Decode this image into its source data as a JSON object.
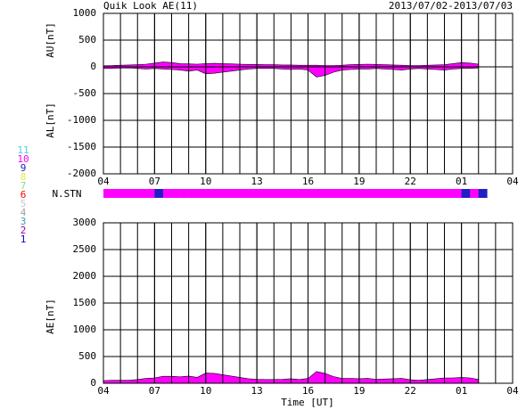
{
  "header": {
    "title": "Quik Look AE(11)",
    "date_range": "2013/07/02-2013/07/03"
  },
  "stations": {
    "label": "N.STN",
    "x": [
      0,
      0.5,
      1,
      1.5,
      2,
      2.5,
      3,
      3.5,
      4,
      4.5,
      5,
      5.5,
      6,
      6.5,
      7,
      7.5,
      8,
      8.5,
      9,
      9.5,
      10,
      10.5,
      11,
      11.5,
      12,
      12.5,
      13,
      13.5,
      14,
      14.5,
      15,
      15.5,
      16,
      16.5,
      17,
      17.5,
      18,
      18.5,
      19,
      19.5,
      20,
      20.5,
      21,
      21.5,
      22
    ],
    "values": [
      10,
      10,
      10,
      10,
      10,
      10,
      9,
      10,
      10,
      10,
      10,
      10,
      10,
      10,
      10,
      10,
      10,
      10,
      10,
      10,
      10,
      10,
      10,
      10,
      10,
      10,
      10,
      10,
      10,
      10,
      10,
      10,
      10,
      10,
      10,
      10,
      10,
      10,
      10,
      10,
      10,
      10,
      9,
      10,
      9
    ],
    "legend": [
      {
        "label": "11",
        "color": "#40d8d8"
      },
      {
        "label": "10",
        "color": "#ff00ff"
      },
      {
        "label": "9",
        "color": "#2020c0"
      },
      {
        "label": "8",
        "color": "#e8e840"
      },
      {
        "label": "7",
        "color": "#80e080"
      },
      {
        "label": "6",
        "color": "#ff0000"
      },
      {
        "label": "5",
        "color": "#c8c8c8"
      },
      {
        "label": "4",
        "color": "#a0a0a0"
      },
      {
        "label": "3",
        "color": "#40a0a0"
      },
      {
        "label": "2",
        "color": "#a000a0"
      },
      {
        "label": "1",
        "color": "#0000c8"
      }
    ]
  },
  "chart_data": [
    {
      "type": "area",
      "ylabels": [
        "AU[nT]",
        "AL[nT]"
      ],
      "x": [
        0,
        0.5,
        1,
        1.5,
        2,
        2.5,
        3,
        3.5,
        4,
        4.5,
        5,
        5.5,
        6,
        6.5,
        7,
        7.5,
        8,
        8.5,
        9,
        9.5,
        10,
        10.5,
        11,
        11.5,
        12,
        12.5,
        13,
        13.5,
        14,
        14.5,
        15,
        15.5,
        16,
        16.5,
        17,
        17.5,
        18,
        18.5,
        19,
        19.5,
        20,
        20.5,
        21,
        21.5,
        22
      ],
      "series": [
        {
          "name": "AU",
          "color": "#ff00ff",
          "values": [
            20,
            25,
            30,
            35,
            40,
            50,
            70,
            90,
            80,
            60,
            55,
            50,
            60,
            65,
            60,
            55,
            50,
            45,
            45,
            40,
            40,
            35,
            35,
            30,
            30,
            30,
            25,
            25,
            30,
            40,
            45,
            50,
            45,
            40,
            35,
            30,
            25,
            25,
            30,
            35,
            40,
            60,
            80,
            70,
            50
          ]
        },
        {
          "name": "AL",
          "color": "#ff00ff",
          "values": [
            -30,
            -30,
            -25,
            -20,
            -30,
            -40,
            -30,
            -40,
            -50,
            -60,
            -80,
            -60,
            -130,
            -120,
            -100,
            -80,
            -60,
            -40,
            -30,
            -30,
            -30,
            -40,
            -50,
            -40,
            -60,
            -190,
            -160,
            -100,
            -60,
            -50,
            -40,
            -40,
            -30,
            -40,
            -50,
            -60,
            -40,
            -30,
            -40,
            -50,
            -60,
            -40,
            -30,
            -30,
            -20
          ]
        }
      ],
      "xlim": [
        0,
        24
      ],
      "xticks": [
        {
          "value": 0,
          "label": "04"
        },
        {
          "value": 3,
          "label": "07"
        },
        {
          "value": 6,
          "label": "10"
        },
        {
          "value": 9,
          "label": "13"
        },
        {
          "value": 12,
          "label": "16"
        },
        {
          "value": 15,
          "label": "19"
        },
        {
          "value": 18,
          "label": "22"
        },
        {
          "value": 21,
          "label": "01"
        },
        {
          "value": 24,
          "label": "04"
        }
      ],
      "ylim": [
        -2000,
        1000
      ],
      "yticks": [
        1000,
        500,
        0,
        -500,
        -1000,
        -1500,
        -2000
      ],
      "grid": true
    },
    {
      "type": "area",
      "ylabels": [
        "AE[nT]"
      ],
      "xlabel": "Time [UT]",
      "x": [
        0,
        0.5,
        1,
        1.5,
        2,
        2.5,
        3,
        3.5,
        4,
        4.5,
        5,
        5.5,
        6,
        6.5,
        7,
        7.5,
        8,
        8.5,
        9,
        9.5,
        10,
        10.5,
        11,
        11.5,
        12,
        12.5,
        13,
        13.5,
        14,
        14.5,
        15,
        15.5,
        16,
        16.5,
        17,
        17.5,
        18,
        18.5,
        19,
        19.5,
        20,
        20.5,
        21,
        21.5,
        22
      ],
      "series": [
        {
          "name": "AE",
          "color": "#ff00ff",
          "values": [
            50,
            55,
            55,
            55,
            70,
            90,
            100,
            130,
            130,
            120,
            135,
            110,
            190,
            185,
            160,
            135,
            110,
            85,
            75,
            70,
            70,
            75,
            85,
            70,
            90,
            220,
            185,
            125,
            90,
            90,
            85,
            90,
            75,
            80,
            85,
            90,
            65,
            55,
            70,
            85,
            100,
            100,
            110,
            100,
            70
          ]
        }
      ],
      "xlim": [
        0,
        24
      ],
      "xticks": [
        {
          "value": 0,
          "label": "04"
        },
        {
          "value": 3,
          "label": "07"
        },
        {
          "value": 6,
          "label": "10"
        },
        {
          "value": 9,
          "label": "13"
        },
        {
          "value": 12,
          "label": "16"
        },
        {
          "value": 15,
          "label": "19"
        },
        {
          "value": 18,
          "label": "22"
        },
        {
          "value": 21,
          "label": "01"
        },
        {
          "value": 24,
          "label": "04"
        }
      ],
      "ylim": [
        0,
        3000
      ],
      "yticks": [
        3000,
        2500,
        2000,
        1500,
        1000,
        500,
        0
      ],
      "grid": true
    }
  ]
}
